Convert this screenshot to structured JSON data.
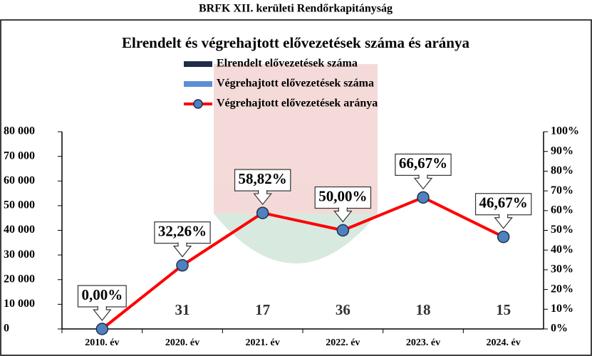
{
  "page_title": "BRFK XII. kerületi Rendőrkapitányság",
  "chart_data": {
    "type": "bar_line",
    "title": "Elrendelt és végrehajtott elővezetések száma és aránya",
    "categories": [
      "2010. év",
      "2020. év",
      "2021. év",
      "2022. év",
      "2023. év",
      "2024. év"
    ],
    "series": [
      {
        "name": "Elrendelt elővezetések száma",
        "type": "bar",
        "color": "#1f2d4a",
        "values": [
          null,
          31,
          17,
          36,
          18,
          15
        ]
      },
      {
        "name": "Végrehajtott elővezetések száma",
        "type": "bar",
        "color": "#5b8fd4",
        "values": [
          0,
          10,
          10,
          18,
          12,
          7
        ]
      },
      {
        "name": "Végrehajtott elővezetések aránya",
        "type": "line",
        "axis": "y2",
        "color": "#ff0000",
        "marker_color": "#4f81bd",
        "values": [
          0,
          32.26,
          58.82,
          50.0,
          66.67,
          46.67
        ],
        "value_labels": [
          "0,00%",
          "32,26%",
          "58,82%",
          "50,00%",
          "66,67%",
          "46,67%"
        ]
      }
    ],
    "ylim": [
      0,
      80000
    ],
    "yticks": [
      0,
      {
        "value": 10000,
        "label": "10 000"
      },
      {
        "value": 20000,
        "label": "20 000"
      },
      {
        "value": 30000,
        "label": "30 000"
      },
      {
        "value": 40000,
        "label": "40 000"
      },
      {
        "value": 50000,
        "label": "50 000"
      },
      {
        "value": 60000,
        "label": "60 000"
      },
      {
        "value": 70000,
        "label": "70 000"
      },
      {
        "value": 80000,
        "label": "80 000"
      }
    ],
    "y2lim": [
      0,
      100
    ],
    "y2ticks": [
      {
        "value": 0,
        "label": "0%"
      },
      {
        "value": 10,
        "label": "10%"
      },
      {
        "value": 20,
        "label": "20%"
      },
      {
        "value": 30,
        "label": "30%"
      },
      {
        "value": 40,
        "label": "40%"
      },
      {
        "value": 50,
        "label": "50%"
      },
      {
        "value": 60,
        "label": "60%"
      },
      {
        "value": 70,
        "label": "70%"
      },
      {
        "value": 80,
        "label": "80%"
      },
      {
        "value": 90,
        "label": "90%"
      },
      {
        "value": 100,
        "label": "100%"
      }
    ],
    "grid": false,
    "legend_position": "top"
  }
}
